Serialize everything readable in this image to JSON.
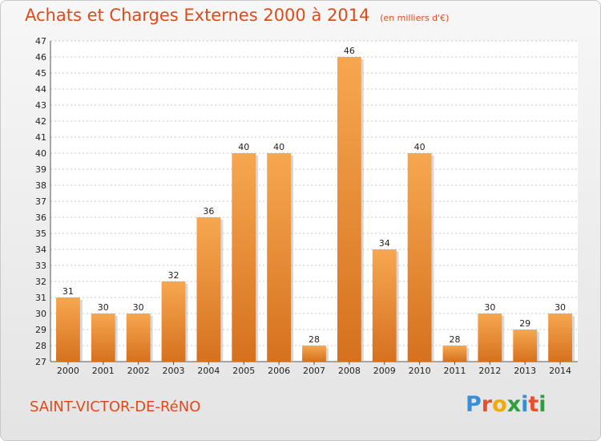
{
  "header": {
    "title": "Achats et Charges Externes 2000 à 2014",
    "subtitle": "(en milliers d'€)"
  },
  "footer": {
    "commune": "SAINT-VICTOR-DE-RéNO",
    "logo_letters": [
      "P",
      "r",
      "o",
      "x",
      "i",
      "t",
      "i"
    ],
    "logo_colors": [
      "#3a8ed8",
      "#e8502a",
      "#f2a900",
      "#2f9e3f",
      "#3a8ed8",
      "#e8502a",
      "#2f9e3f"
    ]
  },
  "chart_data": {
    "type": "bar",
    "title": "Achats et Charges Externes 2000 à 2014",
    "subtitle": "(en milliers d'€)",
    "categories": [
      "2000",
      "2001",
      "2002",
      "2003",
      "2004",
      "2005",
      "2006",
      "2007",
      "2008",
      "2009",
      "2010",
      "2011",
      "2012",
      "2013",
      "2014"
    ],
    "values": [
      31,
      30,
      30,
      32,
      36,
      40,
      40,
      28,
      46,
      34,
      40,
      28,
      30,
      29,
      30
    ],
    "ylim": [
      27,
      47
    ],
    "yticks": [
      27,
      28,
      29,
      30,
      31,
      32,
      33,
      34,
      35,
      36,
      37,
      38,
      39,
      40,
      41,
      42,
      43,
      44,
      45,
      46,
      47
    ],
    "grid": true,
    "data_labels": true,
    "bar_color": "#f29a40"
  }
}
